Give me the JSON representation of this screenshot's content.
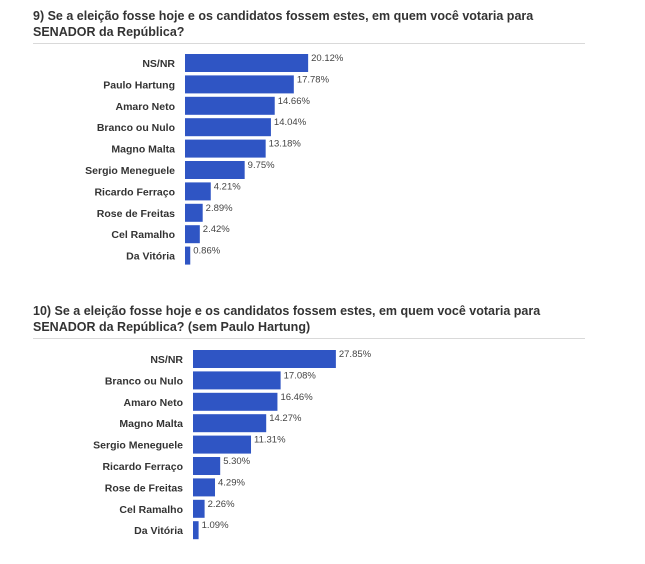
{
  "questions": [
    {
      "title_line1": "9) Se a eleição fosse hoje e os candidatos fossem estes, em quem você votaria para",
      "title_line2": "SENADOR da República?"
    },
    {
      "title_line1": "10) Se a eleição fosse hoje e os candidatos fossem estes, em quem você votaria para",
      "title_line2": "SENADOR da República? (sem Paulo Hartung)"
    }
  ],
  "colors": {
    "bar": "#2f55c4",
    "text": "#333333",
    "rule": "#d9d9d9"
  },
  "chart_data": [
    {
      "type": "bar",
      "orientation": "horizontal",
      "title": "9) Se a eleição fosse hoje e os candidatos fossem estes, em quem você votaria para SENADOR da República?",
      "categories": [
        "NS/NR",
        "Paulo Hartung",
        "Amaro Neto",
        "Branco ou Nulo",
        "Magno Malta",
        "Sergio Meneguele",
        "Ricardo Ferraço",
        "Rose de Freitas",
        "Cel Ramalho",
        "Da Vitória"
      ],
      "values": [
        20.12,
        17.78,
        14.66,
        14.04,
        13.18,
        9.75,
        4.21,
        2.89,
        2.42,
        0.86
      ],
      "value_labels": [
        "20.12%",
        "17.78%",
        "14.66%",
        "14.04%",
        "13.18%",
        "9.75%",
        "4.21%",
        "2.89%",
        "2.42%",
        "0.86%"
      ],
      "xlabel": "",
      "ylabel": "",
      "grid": false,
      "legend": "none"
    },
    {
      "type": "bar",
      "orientation": "horizontal",
      "title": "10) Se a eleição fosse hoje e os candidatos fossem estes, em quem você votaria para SENADOR da República? (sem Paulo Hartung)",
      "categories": [
        "NS/NR",
        "Branco ou Nulo",
        "Amaro Neto",
        "Magno Malta",
        "Sergio Meneguele",
        "Ricardo Ferraço",
        "Rose de Freitas",
        "Cel Ramalho",
        "Da Vitória"
      ],
      "values": [
        27.85,
        17.08,
        16.46,
        14.27,
        11.31,
        5.3,
        4.29,
        2.26,
        1.09
      ],
      "value_labels": [
        "27.85%",
        "17.08%",
        "16.46%",
        "14.27%",
        "11.31%",
        "5.30%",
        "4.29%",
        "2.26%",
        "1.09%"
      ],
      "xlabel": "",
      "ylabel": "",
      "grid": false,
      "legend": "none"
    }
  ]
}
